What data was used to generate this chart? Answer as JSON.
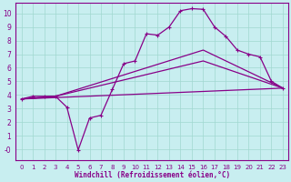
{
  "xlabel": "Windchill (Refroidissement éolien,°C)",
  "xlim": [
    -0.5,
    23.5
  ],
  "ylim": [
    -0.8,
    10.8
  ],
  "xticks": [
    0,
    1,
    2,
    3,
    4,
    5,
    6,
    7,
    8,
    9,
    10,
    11,
    12,
    13,
    14,
    15,
    16,
    17,
    18,
    19,
    20,
    21,
    22,
    23
  ],
  "yticks": [
    0,
    1,
    2,
    3,
    4,
    5,
    6,
    7,
    8,
    9,
    10
  ],
  "ytick_labels": [
    "-0",
    "1",
    "2",
    "3",
    "4",
    "5",
    "6",
    "7",
    "8",
    "9",
    "10"
  ],
  "bg_color": "#c8eef0",
  "line_color": "#880088",
  "grid_color": "#a0d8d0",
  "line1_x": [
    0,
    1,
    2,
    3,
    4,
    5,
    6,
    7,
    8,
    9,
    10,
    11,
    12,
    13,
    14,
    15,
    16,
    17,
    18,
    19,
    20,
    21,
    22,
    23
  ],
  "line1_y": [
    3.7,
    3.9,
    3.9,
    3.9,
    3.1,
    -0.05,
    2.3,
    2.5,
    4.4,
    6.3,
    6.5,
    8.5,
    8.4,
    9.0,
    10.2,
    10.35,
    10.3,
    9.0,
    8.3,
    7.3,
    7.0,
    6.8,
    5.0,
    4.5
  ],
  "line2_x": [
    0,
    3,
    16,
    23
  ],
  "line2_y": [
    3.7,
    3.9,
    7.3,
    4.5
  ],
  "line3_x": [
    0,
    23
  ],
  "line3_y": [
    3.7,
    4.5
  ],
  "line4_x": [
    0,
    3,
    16,
    23
  ],
  "line4_y": [
    3.7,
    3.9,
    6.5,
    4.5
  ]
}
